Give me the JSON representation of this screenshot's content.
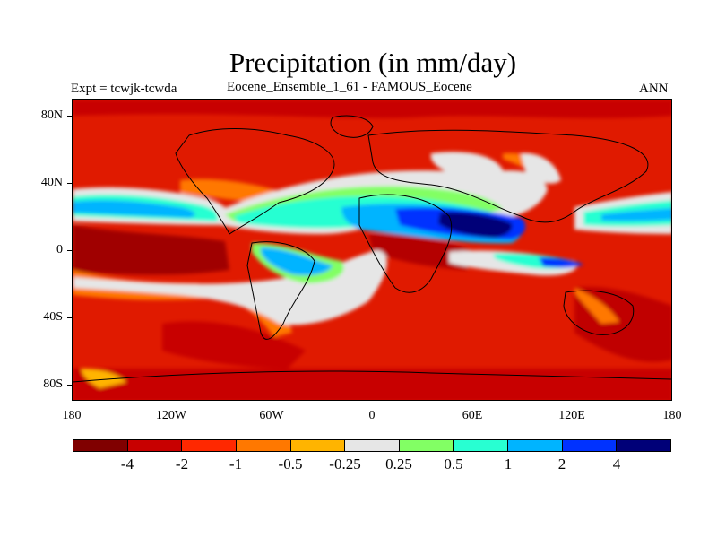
{
  "title": "Precipitation (in mm/day)",
  "experiment": "Expt = tcwjk-tcwda",
  "subtitle": "Eocene_Ensemble_1_61 - FAMOUS_Eocene",
  "season": "ANN",
  "y_axis": [
    "80N",
    "40N",
    "0",
    "40S",
    "80S"
  ],
  "x_axis": [
    "180",
    "120W",
    "60W",
    "0",
    "60E",
    "120E",
    "180"
  ],
  "colorbar": {
    "colors": [
      "#800000",
      "#c80000",
      "#ff2800",
      "#ff7800",
      "#ffb400",
      "#e6e6e6",
      "#82ff64",
      "#28ffd2",
      "#00b4ff",
      "#0032ff",
      "#000078"
    ],
    "labels": [
      "-4",
      "-2",
      "-1",
      "-0.5",
      "-0.25",
      "0.25",
      "0.5",
      "1",
      "2",
      "4"
    ]
  }
}
